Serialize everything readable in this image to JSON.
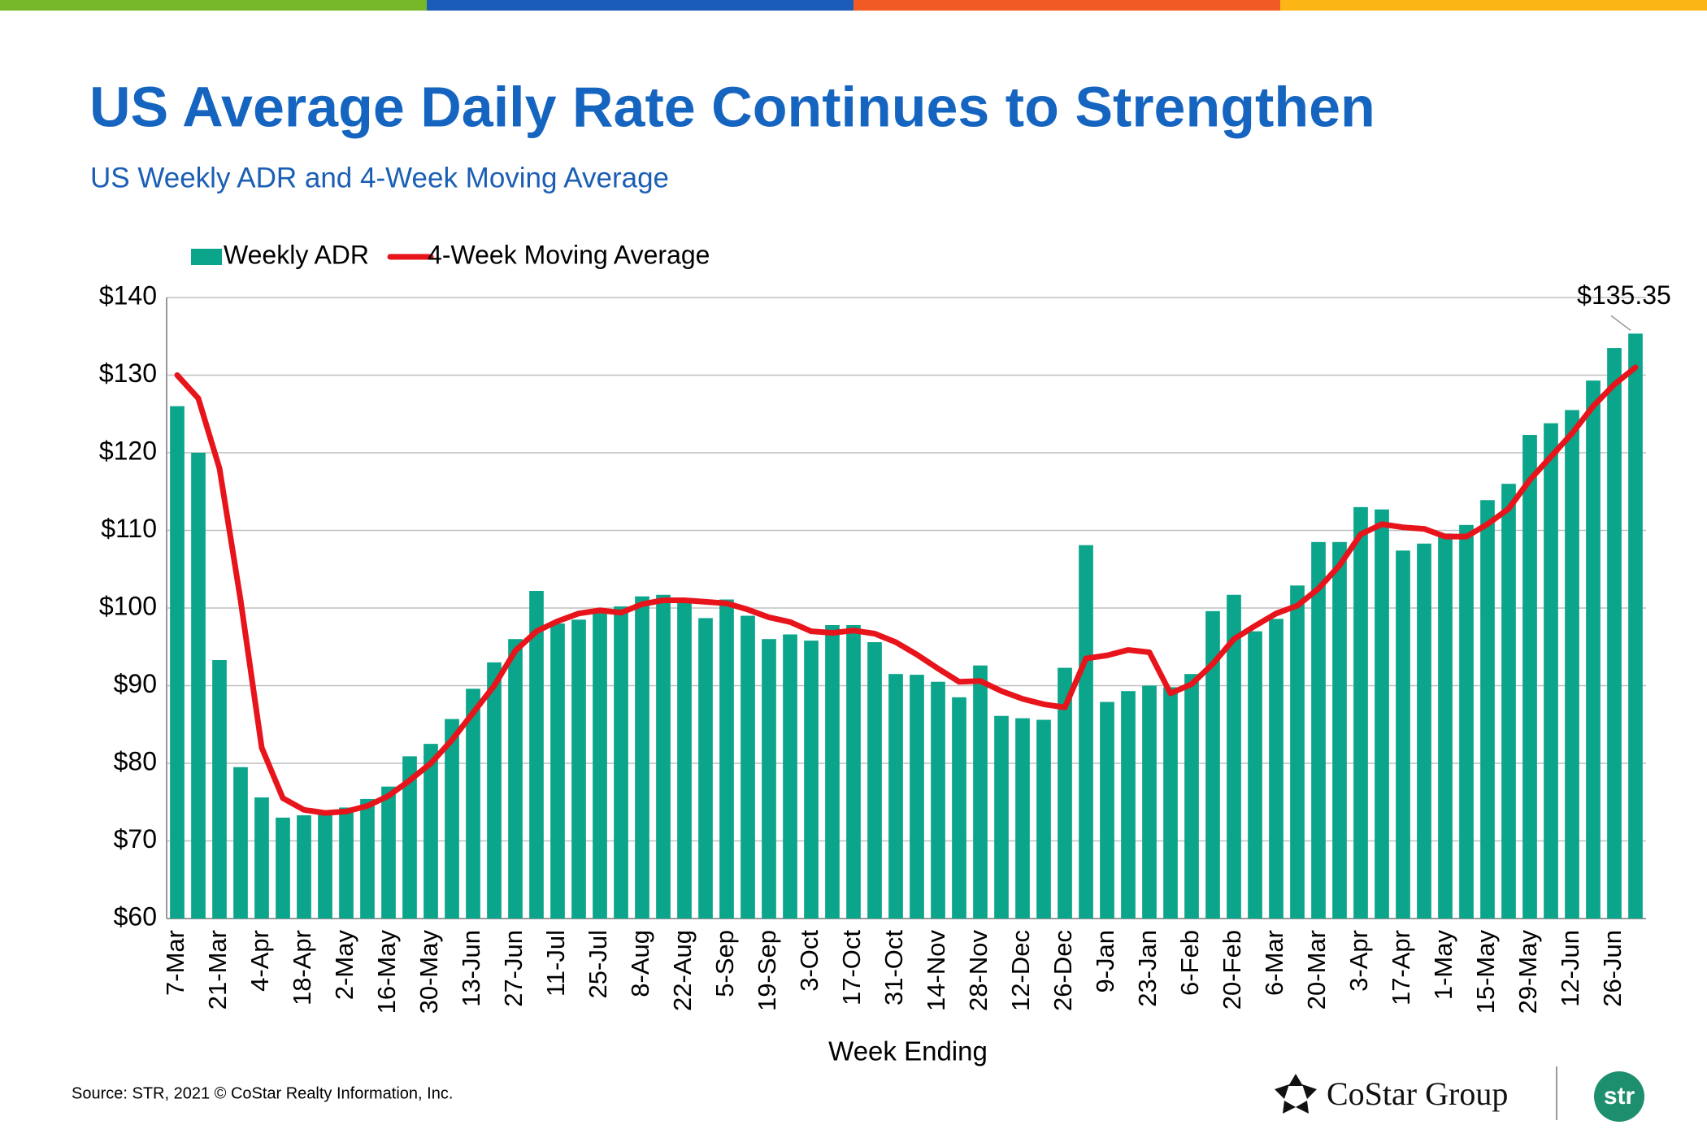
{
  "chart_data": {
    "type": "bar-line",
    "title": "US Average Daily Rate Continues to Strengthen",
    "subtitle": "US Weekly ADR and 4-Week Moving Average",
    "x_label": "Week Ending",
    "source": "Source: STR, 2021 © CoStar Realty Information, Inc.",
    "logos": {
      "costar": "CoStar Group",
      "str": "str"
    },
    "annotation": "$135.35",
    "categories": [
      "7-Mar",
      null,
      "21-Mar",
      null,
      "4-Apr",
      null,
      "18-Apr",
      null,
      "2-May",
      null,
      "16-May",
      null,
      "30-May",
      null,
      "13-Jun",
      null,
      "27-Jun",
      null,
      "11-Jul",
      null,
      "25-Jul",
      null,
      "8-Aug",
      null,
      "22-Aug",
      null,
      "5-Sep",
      null,
      "19-Sep",
      null,
      "3-Oct",
      null,
      "17-Oct",
      null,
      "31-Oct",
      null,
      "14-Nov",
      null,
      "28-Nov",
      null,
      "12-Dec",
      null,
      "26-Dec",
      null,
      "9-Jan",
      null,
      "23-Jan",
      null,
      "6-Feb",
      null,
      "20-Feb",
      null,
      "6-Mar",
      null,
      "20-Mar",
      null,
      "3-Apr",
      null,
      "17-Apr",
      null,
      "1-May",
      null,
      "15-May",
      null,
      "29-May",
      null,
      "12-Jun",
      null,
      "26-Jun",
      null
    ],
    "series": [
      {
        "name": "Weekly ADR",
        "type": "bar",
        "color": "#0aa58a",
        "values": [
          126,
          120,
          93.3,
          79.5,
          75.6,
          73,
          73.3,
          73.5,
          74.3,
          75.4,
          77,
          80.9,
          82.5,
          85.7,
          89.6,
          93,
          96,
          102.2,
          98,
          98.5,
          99.5,
          100.2,
          101.5,
          101.7,
          100.7,
          98.7,
          101.1,
          99,
          96,
          96.6,
          95.8,
          97.8,
          97.8,
          95.6,
          91.5,
          91.4,
          90.5,
          88.5,
          92.6,
          86.1,
          85.8,
          85.6,
          92.3,
          108.1,
          87.9,
          89.3,
          90,
          89.8,
          91.5,
          99.6,
          101.7,
          97,
          98.6,
          102.9,
          108.5,
          108.5,
          113,
          112.7,
          107.4,
          108.3,
          109.6,
          110.7,
          113.9,
          116,
          122.3,
          123.8,
          125.5,
          129.3,
          133.5,
          135.35
        ]
      },
      {
        "name": "4-Week Moving Average",
        "type": "line",
        "color": "#e8141b",
        "values": [
          130,
          127,
          118,
          101,
          82,
          75.5,
          74,
          73.6,
          73.8,
          74.5,
          75.8,
          77.8,
          80,
          83,
          86.5,
          90,
          94.5,
          97,
          98.3,
          99.3,
          99.7,
          99.4,
          100.5,
          101,
          101,
          100.8,
          100.6,
          99.8,
          98.8,
          98.2,
          97,
          96.8,
          97.1,
          96.7,
          95.6,
          94,
          92.2,
          90.5,
          90.6,
          89.3,
          88.3,
          87.6,
          87.2,
          93.5,
          93.9,
          94.6,
          94.3,
          89,
          90.2,
          92.8,
          96,
          97.7,
          99.3,
          100.3,
          102.5,
          105.5,
          109.5,
          110.8,
          110.4,
          110.2,
          109.2,
          109.2,
          110.8,
          112.8,
          116.5,
          119.5,
          122.5,
          126,
          128.8,
          131
        ]
      }
    ],
    "ylim": [
      60,
      140
    ],
    "yticks": [
      {
        "value": 60,
        "label": "$60"
      },
      {
        "value": 70,
        "label": "$70"
      },
      {
        "value": 80,
        "label": "$80"
      },
      {
        "value": 90,
        "label": "$90"
      },
      {
        "value": 100,
        "label": "$100"
      },
      {
        "value": 110,
        "label": "$110"
      },
      {
        "value": 120,
        "label": "$120"
      },
      {
        "value": 130,
        "label": "$130"
      },
      {
        "value": 140,
        "label": "$140"
      }
    ],
    "grid": true,
    "legend": "top-left"
  }
}
